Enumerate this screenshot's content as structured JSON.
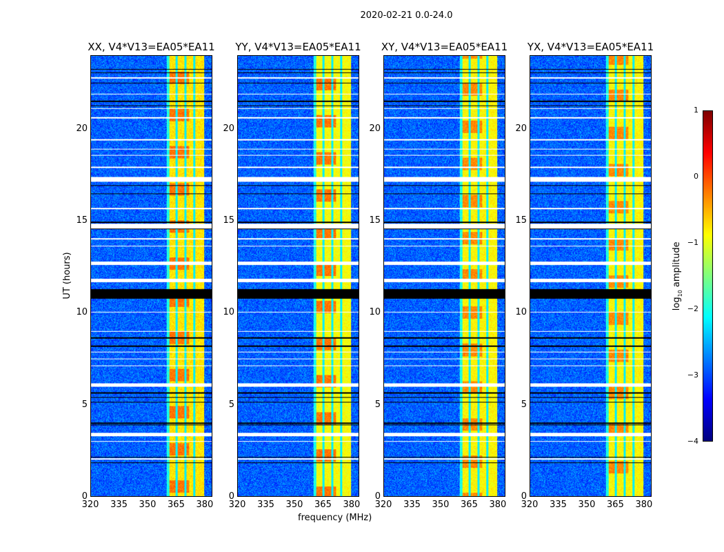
{
  "chart_data": {
    "type": "heatmap",
    "title": "2020-02-21 0.0-24.0",
    "xlabel": "frequency (MHz)",
    "ylabel": "UT (hours)",
    "xlim": [
      320,
      384
    ],
    "ylim": [
      0,
      24
    ],
    "xticks": [
      "320",
      "335",
      "350",
      "365",
      "380"
    ],
    "xtick_values": [
      320,
      335,
      350,
      365,
      380
    ],
    "yticks": [
      "0",
      "5",
      "10",
      "15",
      "20"
    ],
    "ytick_values": [
      0,
      5,
      10,
      15,
      20
    ],
    "panels": [
      {
        "title": "XX, V4*V13=EA05*EA11",
        "band_level": -0.75,
        "hot_level": -0.2
      },
      {
        "title": "YY, V4*V13=EA05*EA11",
        "band_level": -0.9,
        "hot_level": -0.2
      },
      {
        "title": "XY, V4*V13=EA05*EA11",
        "band_level": -0.85,
        "hot_level": -0.3
      },
      {
        "title": "YX, V4*V13=EA05*EA11",
        "band_level": -0.85,
        "hot_level": -0.3
      }
    ],
    "background_level": -2.9,
    "band_mhz": [
      360,
      380
    ],
    "subband_edges_mhz": [
      365.5,
      370.2,
      374.9
    ],
    "gap_hours": [
      [
        22.75,
        22.85
      ],
      [
        21.9,
        21.95
      ],
      [
        21.1,
        21.15
      ],
      [
        20.6,
        20.65
      ],
      [
        19.4,
        19.45
      ],
      [
        18.9,
        18.95
      ],
      [
        18.55,
        18.6
      ],
      [
        17.9,
        17.95
      ],
      [
        17.15,
        17.4
      ],
      [
        15.65,
        15.7
      ],
      [
        14.6,
        14.85
      ],
      [
        14.0,
        14.05
      ],
      [
        13.6,
        13.65
      ],
      [
        12.6,
        12.8
      ],
      [
        11.65,
        11.85
      ],
      [
        10.0,
        10.05
      ],
      [
        8.95,
        9.0
      ],
      [
        7.82,
        7.87
      ],
      [
        7.45,
        7.5
      ],
      [
        7.07,
        7.12
      ],
      [
        5.95,
        6.15
      ],
      [
        3.25,
        3.45
      ],
      [
        2.95,
        3.0
      ],
      [
        2.0,
        2.05
      ]
    ],
    "flag_hours": [
      [
        23.25,
        23.3
      ],
      [
        23.05,
        23.1
      ],
      [
        22.5,
        22.55
      ],
      [
        21.5,
        21.55
      ],
      [
        21.25,
        21.3
      ],
      [
        16.9,
        16.95
      ],
      [
        16.45,
        16.5
      ],
      [
        14.9,
        14.95
      ],
      [
        14.55,
        14.6
      ],
      [
        10.75,
        11.3
      ],
      [
        8.6,
        8.65
      ],
      [
        8.15,
        8.2
      ],
      [
        6.0,
        6.05
      ],
      [
        5.6,
        5.65
      ],
      [
        5.35,
        5.4
      ],
      [
        5.1,
        5.15
      ],
      [
        3.95,
        4.0
      ],
      [
        3.85,
        3.9
      ],
      [
        2.1,
        2.15
      ],
      [
        1.8,
        1.85
      ]
    ],
    "colorbar": {
      "label_prefix": "log",
      "label_sub": "10",
      "label_suffix": " amplitude",
      "ticks": [
        "1",
        "0",
        "−1",
        "−2",
        "−3",
        "−4"
      ],
      "tick_values": [
        1,
        0,
        -1,
        -2,
        -3,
        -4
      ],
      "range": [
        -4,
        1
      ],
      "colormap": "jet"
    }
  }
}
